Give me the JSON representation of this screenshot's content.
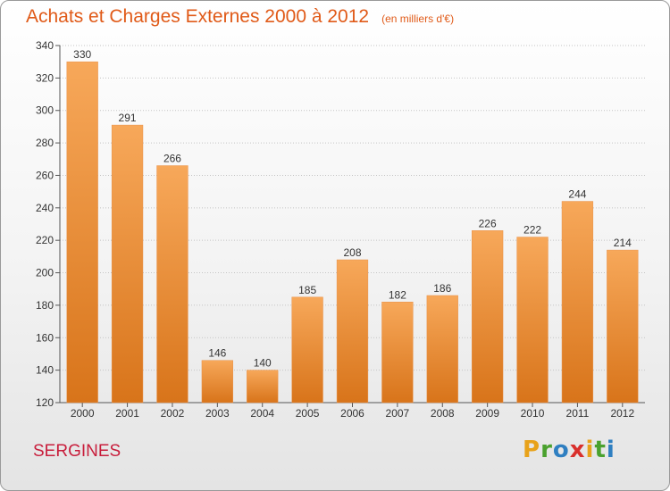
{
  "chart_data": {
    "type": "bar",
    "title": "Achats et Charges Externes 2000 à 2012",
    "subtitle": "(en milliers d'€)",
    "categories": [
      "2000",
      "2001",
      "2002",
      "2003",
      "2004",
      "2005",
      "2006",
      "2007",
      "2008",
      "2009",
      "2010",
      "2011",
      "2012"
    ],
    "values": [
      330,
      291,
      266,
      146,
      140,
      185,
      208,
      182,
      186,
      226,
      222,
      244,
      214
    ],
    "ylim": [
      120,
      340
    ],
    "yticks": [
      120,
      140,
      160,
      180,
      200,
      220,
      240,
      260,
      280,
      300,
      320,
      340
    ],
    "grid": true,
    "colors": {
      "bar_top": "#f7a85a",
      "bar_bottom": "#d8741a",
      "title": "#e05a18",
      "commune": "#c81e3c"
    }
  },
  "commune": "SERGINES",
  "logo": {
    "letters": [
      "P",
      "r",
      "o",
      "x",
      "i",
      "t",
      "i"
    ],
    "colors": [
      "#e8a21a",
      "#4aa12e",
      "#2f7fc1",
      "#d9302c",
      "#e8a21a",
      "#4aa12e",
      "#2f7fc1"
    ]
  }
}
